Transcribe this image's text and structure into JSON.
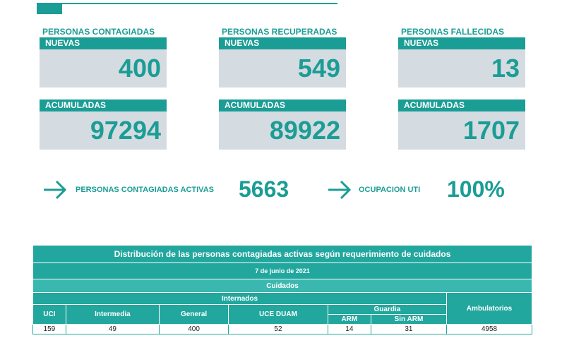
{
  "cards": [
    {
      "title": "PERSONAS CONTAGIADAS",
      "new_label": "NUEVAS",
      "new_value": 400,
      "acc_label": "ACUMULADAS",
      "acc_value": 97294
    },
    {
      "title": "PERSONAS RECUPERADAS",
      "new_label": "NUEVAS",
      "new_value": 549,
      "acc_label": "ACUMULADAS",
      "acc_value": 89922
    },
    {
      "title": "PERSONAS FALLECIDAS",
      "new_label": "NUEVAS",
      "new_value": 13,
      "acc_label": "ACUMULADAS",
      "acc_value": 1707
    }
  ],
  "highlights": [
    {
      "label": "PERSONAS CONTAGIADAS ACTIVAS",
      "value": 5663
    },
    {
      "label": "OCUPACION UTI",
      "value": "100%"
    }
  ],
  "table": {
    "title": "Distribución de las personas contagiadas activas según requerimiento de cuidados",
    "date": "7 de junio de 2021",
    "group": "Cuidados",
    "subgroup": "Internados",
    "columns": [
      "UCI",
      "Intermedia",
      "General",
      "UCE DUAM"
    ],
    "guard": "Guardia",
    "guard_columns": [
      "ARM",
      "Sin ARM"
    ],
    "ambulatory": "Ambulatorios",
    "values": [
      159,
      49,
      400,
      52,
      14,
      31,
      4958
    ]
  }
}
